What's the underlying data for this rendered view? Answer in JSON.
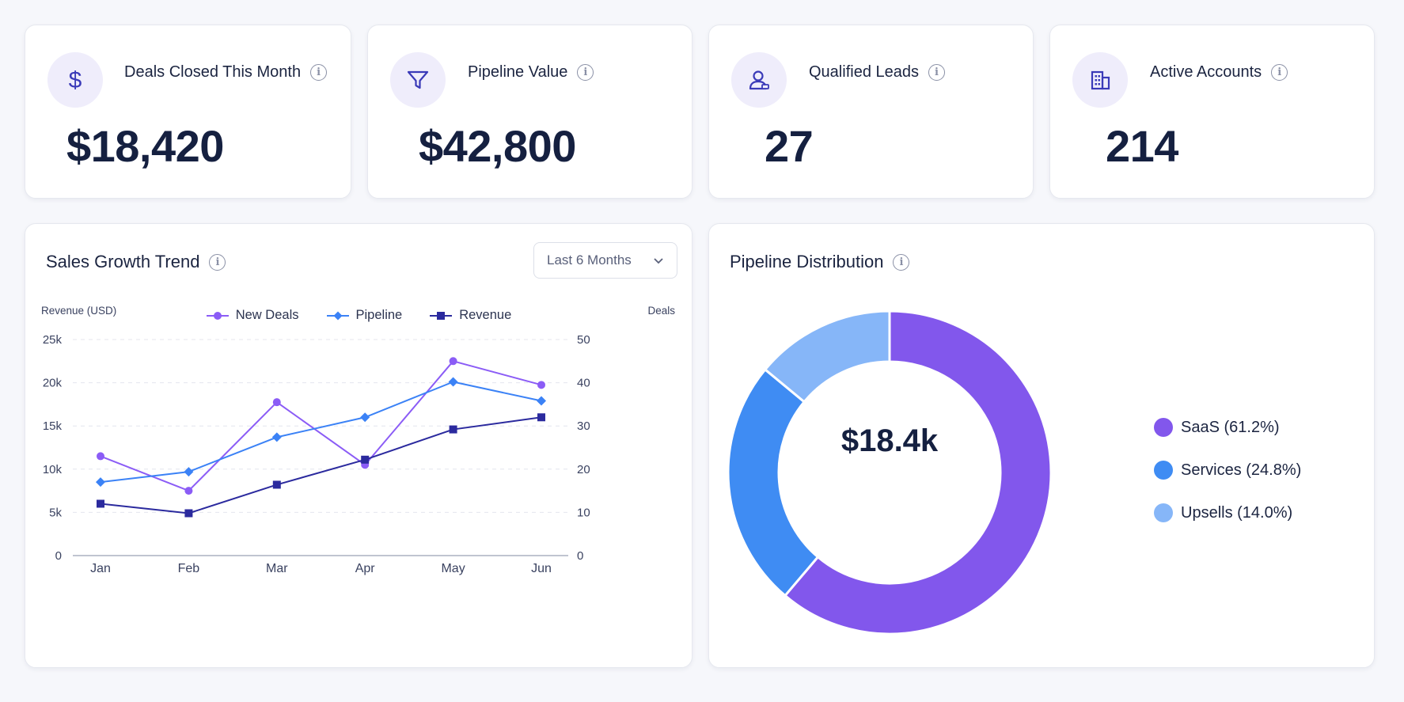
{
  "kpis": [
    {
      "title": "Deals Closed This Month",
      "value": "$18,420",
      "icon": "dollar-icon"
    },
    {
      "title": "Pipeline Value",
      "value": "$42,800",
      "icon": "funnel-icon"
    },
    {
      "title": "Qualified Leads",
      "value": "27",
      "icon": "user-icon"
    },
    {
      "title": "Active Accounts",
      "value": "214",
      "icon": "building-icon"
    }
  ],
  "sales_trend": {
    "title": "Sales Growth Trend",
    "range_selected": "Last 6 Months"
  },
  "pipeline_distribution": {
    "title": "Pipeline Distribution",
    "center_value": "$18.4k",
    "legend": [
      "SaaS (61.2%)",
      "Services (24.8%)",
      "Upsells (14.0%)"
    ]
  },
  "colors": {
    "new_deals": "#8b5cf6",
    "pipeline": "#3b82f6",
    "revenue": "#2b2a9e",
    "saas": "#8257ec",
    "services": "#3f8cf3",
    "upsells": "#86b6f8",
    "accent_bg": "#efedfb",
    "icon": "#3a3ab8"
  },
  "chart_data": [
    {
      "type": "line",
      "title": "Sales Growth Trend",
      "categories": [
        "Jan",
        "Feb",
        "Mar",
        "Apr",
        "May",
        "Jun"
      ],
      "ylabel": "Revenue (USD)",
      "y2label": "Deals",
      "ylim": [
        0,
        25000
      ],
      "y2lim": [
        0,
        50
      ],
      "y_ticks": [
        "0",
        "5k",
        "10k",
        "15k",
        "20k",
        "25k"
      ],
      "y2_ticks": [
        "0",
        "10",
        "20",
        "30",
        "40",
        "50"
      ],
      "grid": true,
      "legend_position": "top-center",
      "series": [
        {
          "name": "New Deals",
          "axis": "right",
          "marker": "circle",
          "values": [
            23,
            15,
            35.5,
            21,
            45,
            39.5
          ]
        },
        {
          "name": "Pipeline",
          "axis": "left",
          "marker": "diamond",
          "values": [
            8500,
            9700,
            13700,
            16000,
            20100,
            17900
          ]
        },
        {
          "name": "Revenue",
          "axis": "left",
          "marker": "square",
          "values": [
            6000,
            4900,
            8200,
            11100,
            14600,
            16000
          ]
        }
      ]
    },
    {
      "type": "pie",
      "title": "Pipeline Distribution",
      "donut": true,
      "center_label": "$18.4k",
      "labels": [
        "SaaS (61.2%)",
        "Services (24.8%)",
        "Upsells (14.0%)"
      ],
      "values": [
        61.2,
        24.8,
        14.0
      ],
      "legend_position": "right"
    }
  ]
}
